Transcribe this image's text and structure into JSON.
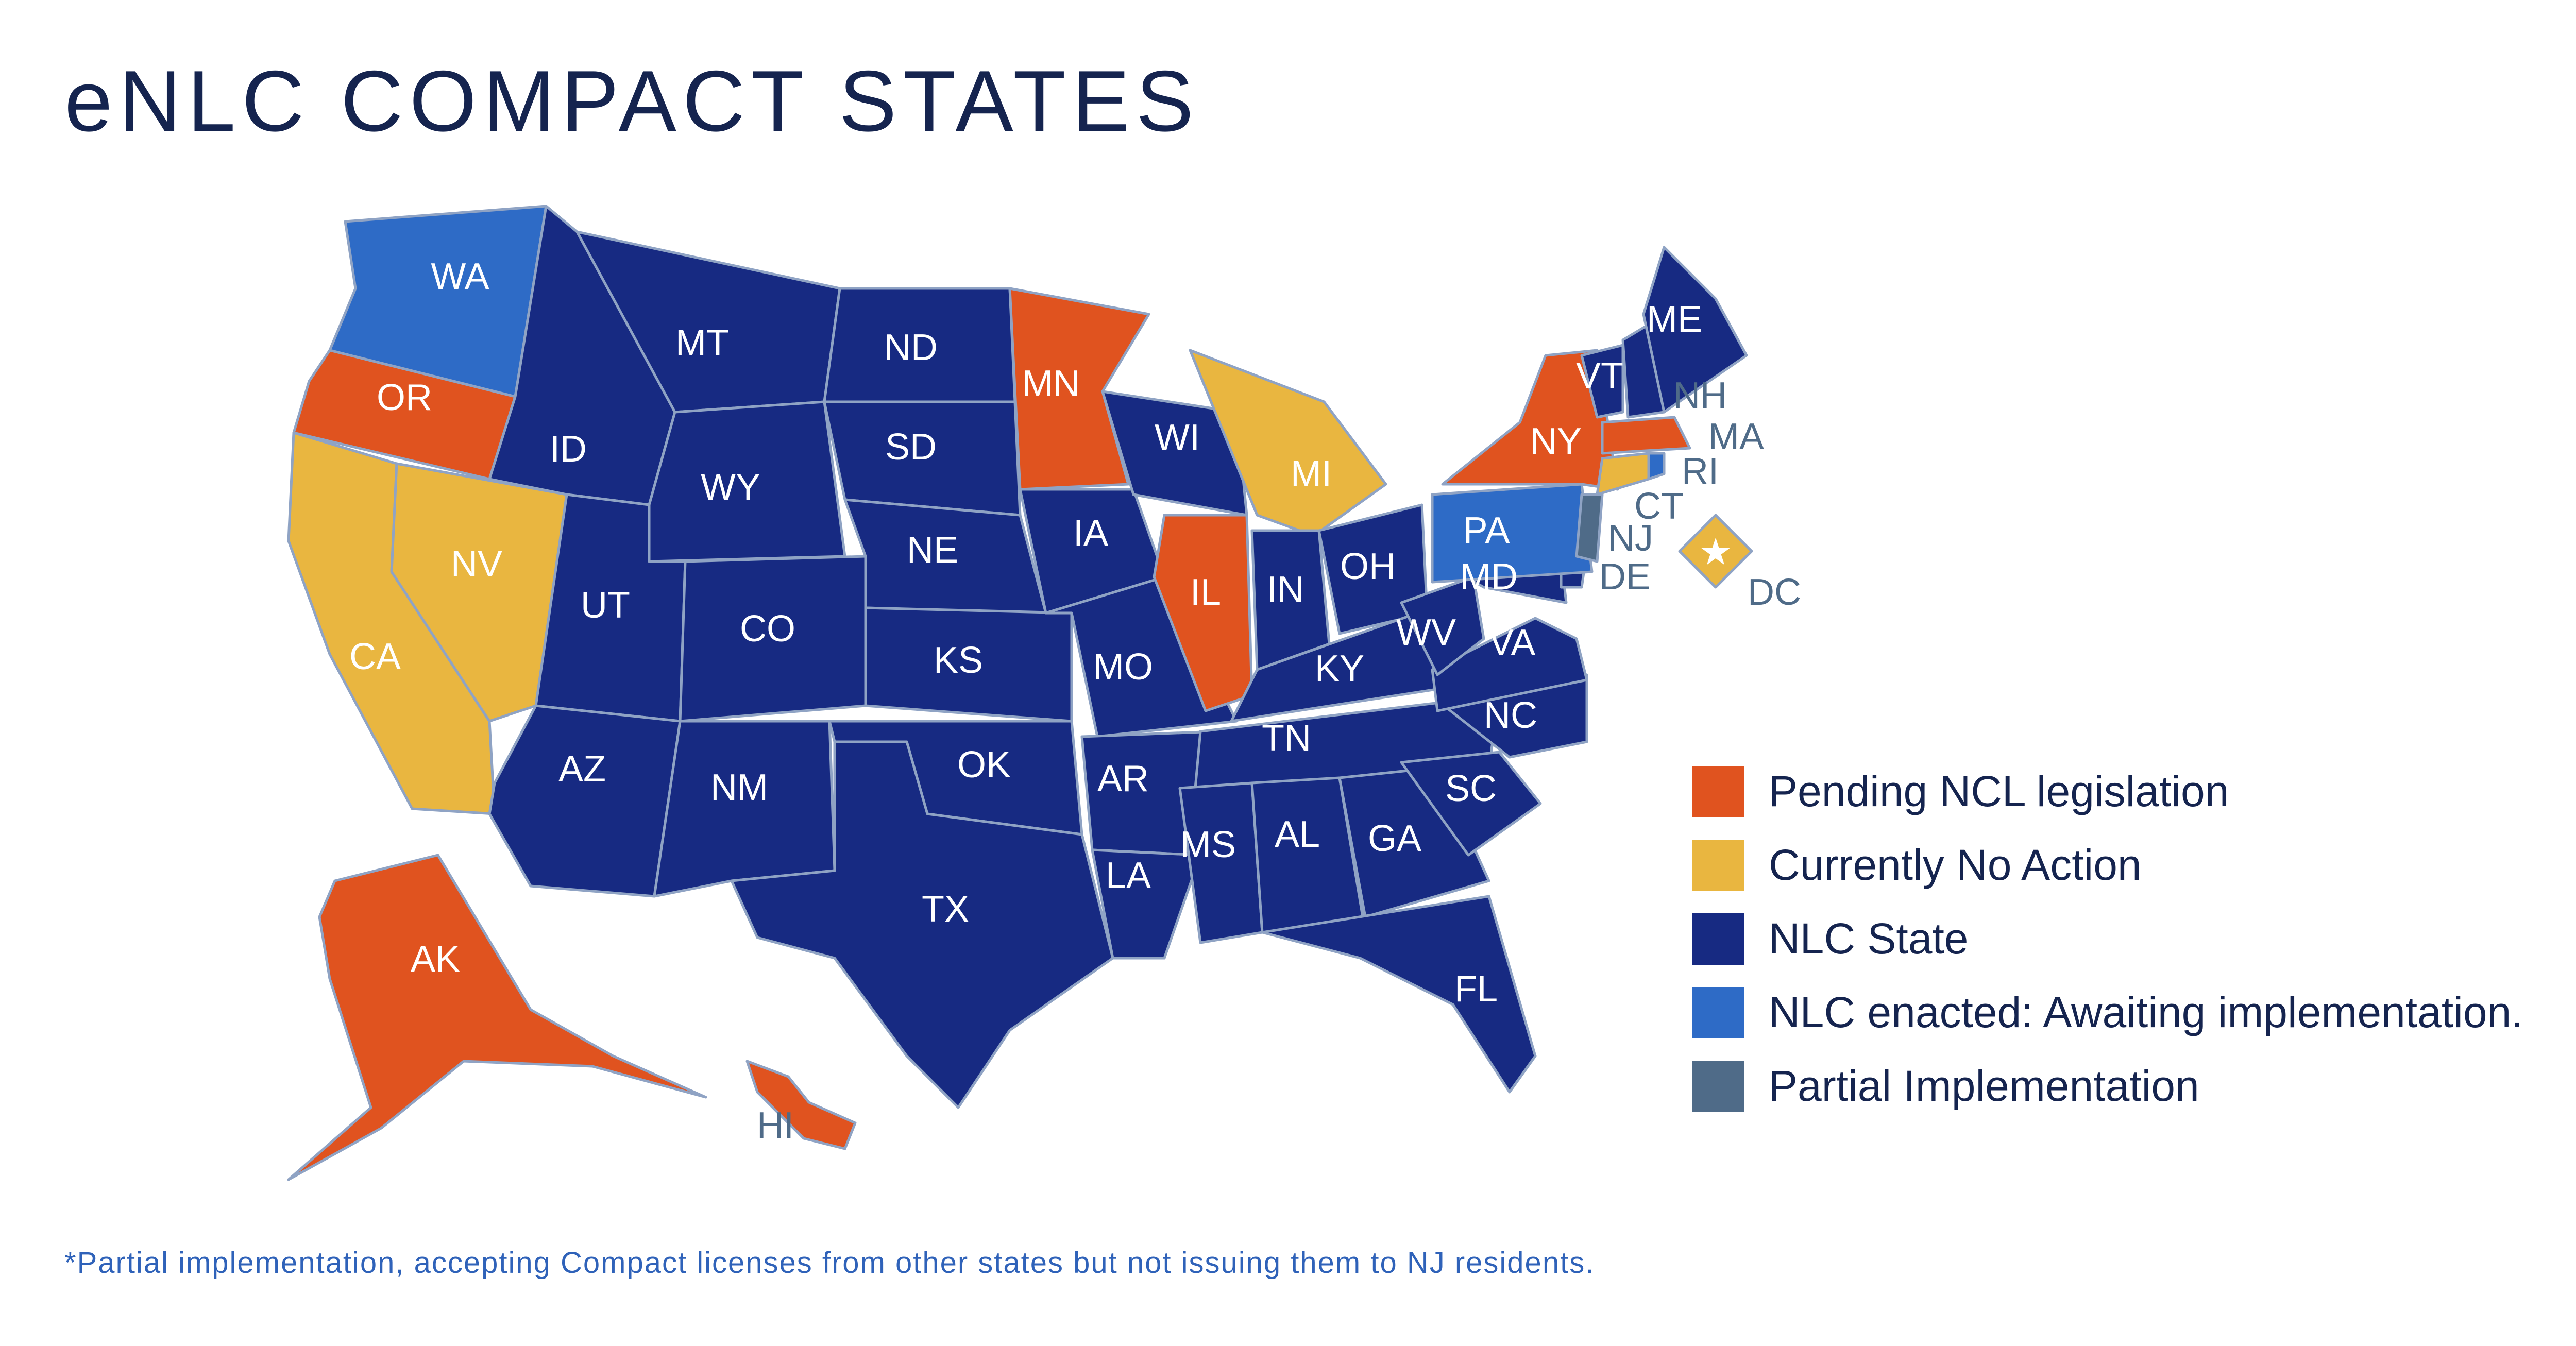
{
  "title": "eNLC COMPACT STATES",
  "colors": {
    "pending": "#e0531f",
    "no_action": "#e9b640",
    "nlc": "#172a82",
    "awaiting": "#2e6bc6",
    "partial": "#4f6b88",
    "border": "#8fa3c4"
  },
  "legend": [
    {
      "key": "pending",
      "label": "Pending NCL legislation"
    },
    {
      "key": "no_action",
      "label": "Currently No Action"
    },
    {
      "key": "nlc",
      "label": "NLC State"
    },
    {
      "key": "awaiting",
      "label": "NLC enacted: Awaiting implementation."
    },
    {
      "key": "partial",
      "label": "Partial Implementation"
    }
  ],
  "states": {
    "WA": "awaiting",
    "OR": "pending",
    "CA": "no_action",
    "NV": "no_action",
    "ID": "nlc",
    "MT": "nlc",
    "WY": "nlc",
    "UT": "nlc",
    "CO": "nlc",
    "AZ": "nlc",
    "NM": "nlc",
    "ND": "nlc",
    "SD": "nlc",
    "NE": "nlc",
    "KS": "nlc",
    "OK": "nlc",
    "TX": "nlc",
    "MN": "pending",
    "IA": "nlc",
    "MO": "nlc",
    "AR": "nlc",
    "LA": "nlc",
    "WI": "nlc",
    "IL": "pending",
    "MI": "no_action",
    "IN": "nlc",
    "OH": "nlc",
    "KY": "nlc",
    "TN": "nlc",
    "MS": "nlc",
    "AL": "nlc",
    "GA": "nlc",
    "FL": "nlc",
    "SC": "nlc",
    "NC": "nlc",
    "VA": "nlc",
    "WV": "nlc",
    "MD": "nlc",
    "DE": "nlc",
    "PA": "awaiting",
    "NJ": "partial",
    "NY": "pending",
    "CT": "no_action",
    "RI": "awaiting",
    "MA": "pending",
    "VT": "nlc",
    "NH": "nlc",
    "ME": "nlc",
    "DC": "no_action",
    "AK": "pending",
    "HI": "pending"
  },
  "footnote": "*Partial implementation, accepting Compact licenses from other states but not issuing them to NJ residents."
}
